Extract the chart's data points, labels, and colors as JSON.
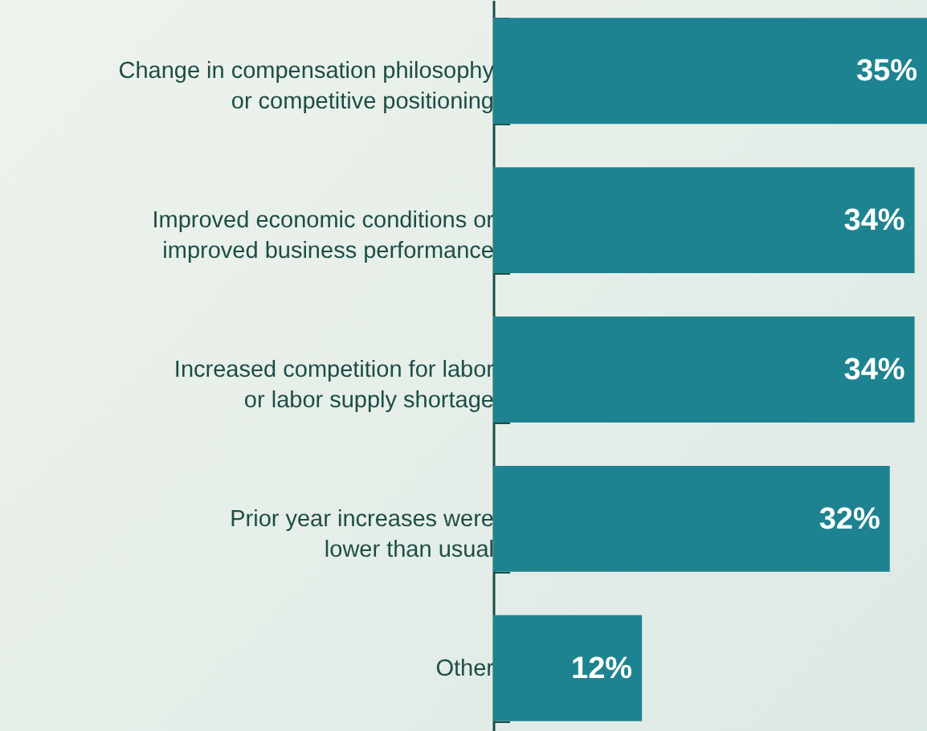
{
  "chart_data": {
    "type": "bar",
    "orientation": "horizontal",
    "categories": [
      "Change in compensation philosophy\nor competitive positioning",
      "Improved economic conditions or\nimproved business performance",
      "Increased competition for labor\nor labor supply shortage",
      "Prior year increases were\nlower than usual",
      "Other"
    ],
    "values": [
      35,
      34,
      34,
      32,
      12
    ],
    "value_labels": [
      "35%",
      "34%",
      "34%",
      "32%",
      "12%"
    ],
    "color": "#1e8390",
    "tick_labels": "y"
  }
}
